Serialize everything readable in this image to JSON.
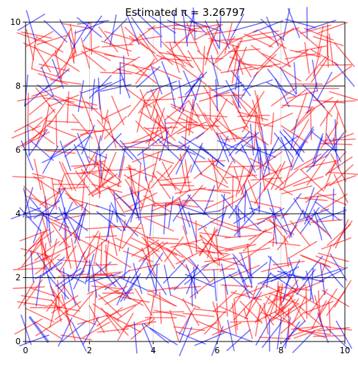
{
  "chart_data": {
    "type": "scatter",
    "title": "Estimated π = 3.26797",
    "xlabel": "",
    "ylabel": "",
    "xlim": [
      0,
      10
    ],
    "ylim": [
      0,
      10
    ],
    "x_ticks": [
      0,
      2,
      4,
      6,
      8,
      10
    ],
    "y_ticks": [
      0,
      2,
      4,
      6,
      8,
      10
    ],
    "x_tick_labels": [
      "0",
      "2",
      "4",
      "6",
      "8",
      "10"
    ],
    "y_tick_labels": [
      "0",
      "2",
      "4",
      "6",
      "8",
      "10"
    ],
    "grid": "horizontal lines at y = 0, 2, 4, 6, 8, 10 (black); faint vertical grid",
    "needle_length": 1,
    "needle_count": 1000,
    "crossing_color": "#0000ff",
    "non_crossing_color": "#ff0000",
    "needle_opacity": 0.55,
    "grid_color": "#000000"
  }
}
